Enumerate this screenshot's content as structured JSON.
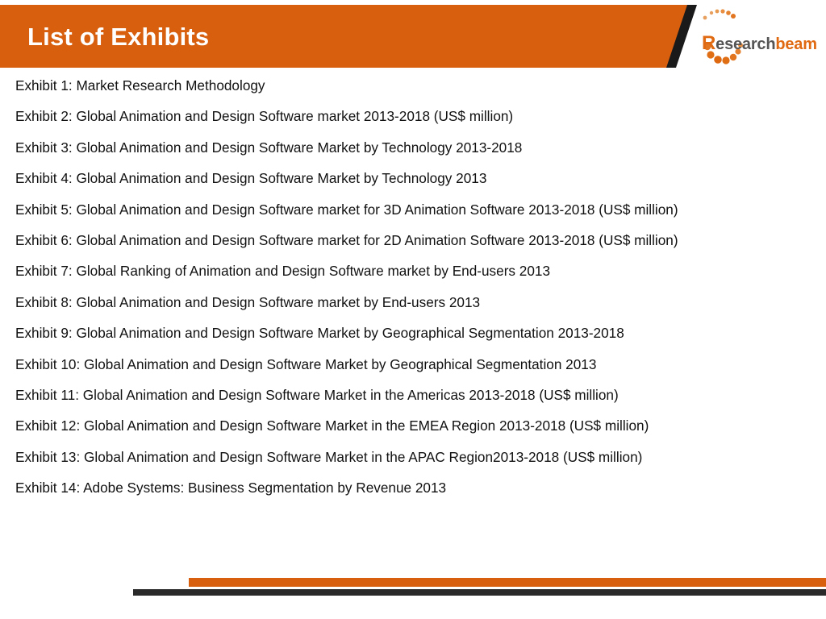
{
  "header": {
    "title": "List of Exhibits",
    "accent_color": "#d75f0e",
    "stripe_color": "#1a1a1a"
  },
  "logo": {
    "first_letter": "R",
    "middle": "esearch",
    "last": "beam",
    "icon": "dotted-arc-icon"
  },
  "exhibits": [
    "Exhibit 1: Market Research Methodology",
    "Exhibit 2: Global Animation and Design Software market 2013-2018 (US$ million)",
    "Exhibit 3: Global Animation and Design Software Market by Technology 2013-2018",
    "Exhibit 4: Global Animation and Design Software Market by Technology 2013",
    "Exhibit 5: Global Animation and Design Software market for 3D Animation Software 2013-2018 (US$ million)",
    "Exhibit 6: Global Animation and Design Software market for 2D Animation Software 2013-2018 (US$ million)",
    "Exhibit 7: Global Ranking of Animation and Design Software market by End-users 2013",
    "Exhibit 8: Global Animation and Design Software market by End-users 2013",
    "Exhibit 9: Global Animation and Design Software Market by Geographical Segmentation 2013-2018",
    "Exhibit 10: Global Animation and Design Software Market by Geographical Segmentation 2013",
    "Exhibit 11: Global Animation and Design Software Market in the Americas 2013-2018 (US$ million)",
    "Exhibit 12: Global Animation and Design Software Market in the EMEA Region 2013-2018 (US$ million)",
    "Exhibit 13: Global Animation and Design Software Market in the APAC Region2013-2018 (US$ million)",
    "Exhibit 14: Adobe Systems: Business Segmentation by Revenue 2013"
  ],
  "footer": {
    "orange_color": "#d75f0e",
    "dark_color": "#2a2a2a"
  }
}
